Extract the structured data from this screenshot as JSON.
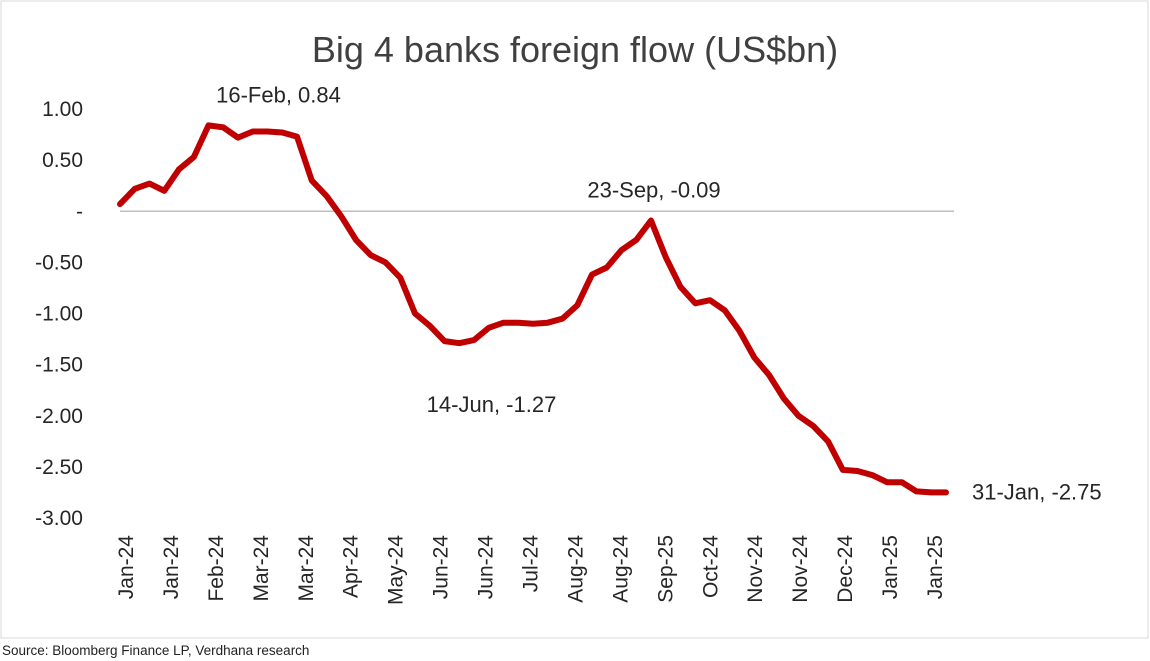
{
  "source_note": "Source: Bloomberg Finance LP, Verdhana research",
  "colors": {
    "line": "#C00000",
    "text": "#262626",
    "axis_text": "#262626",
    "zero_line": "#BFBFBF",
    "frame": "#D9D9D9"
  },
  "chart_data": {
    "type": "line",
    "title": "Big 4 banks foreign flow (US$bn)",
    "xlabel": "",
    "ylabel": "",
    "ylim": [
      -3.0,
      1.0
    ],
    "grid": false,
    "legend": "none",
    "yticks": [
      "1.00",
      "0.50",
      "-",
      "-0.50",
      "-1.00",
      "-1.50",
      "-2.00",
      "-2.50",
      "-3.00"
    ],
    "ytick_values": [
      1.0,
      0.5,
      0,
      -0.5,
      -1.0,
      -1.5,
      -2.0,
      -2.5,
      -3.0
    ],
    "xticks": [
      "Jan-24",
      "Jan-24",
      "Feb-24",
      "Mar-24",
      "Mar-24",
      "Apr-24",
      "May-24",
      "Jun-24",
      "Jun-24",
      "Jul-24",
      "Aug-24",
      "Aug-24",
      "Sep-25",
      "Oct-24",
      "Nov-24",
      "Nov-24",
      "Dec-24",
      "Jan-25",
      "Jan-25"
    ],
    "series": [
      {
        "values": [
          0.07,
          0.22,
          0.27,
          0.2,
          0.41,
          0.53,
          0.84,
          0.82,
          0.72,
          0.78,
          0.78,
          0.77,
          0.73,
          0.3,
          0.15,
          -0.05,
          -0.28,
          -0.43,
          -0.5,
          -0.65,
          -1.0,
          -1.12,
          -1.27,
          -1.29,
          -1.26,
          -1.14,
          -1.09,
          -1.09,
          -1.1,
          -1.09,
          -1.05,
          -0.92,
          -0.62,
          -0.55,
          -0.38,
          -0.28,
          -0.09,
          -0.45,
          -0.74,
          -0.9,
          -0.87,
          -0.97,
          -1.17,
          -1.43,
          -1.6,
          -1.83,
          -2.0,
          -2.1,
          -2.25,
          -2.53,
          -2.54,
          -2.58,
          -2.65,
          -2.65,
          -2.74,
          -2.75,
          -2.75
        ]
      }
    ],
    "annotations": [
      {
        "text": "16-Feb,  0.84",
        "point_index": 6
      },
      {
        "text": "14-Jun, -1.27",
        "point_index": 22
      },
      {
        "text": "23-Sep, -0.09",
        "point_index": 36
      },
      {
        "text": "31-Jan, -2.75",
        "point_index": 56
      }
    ]
  }
}
